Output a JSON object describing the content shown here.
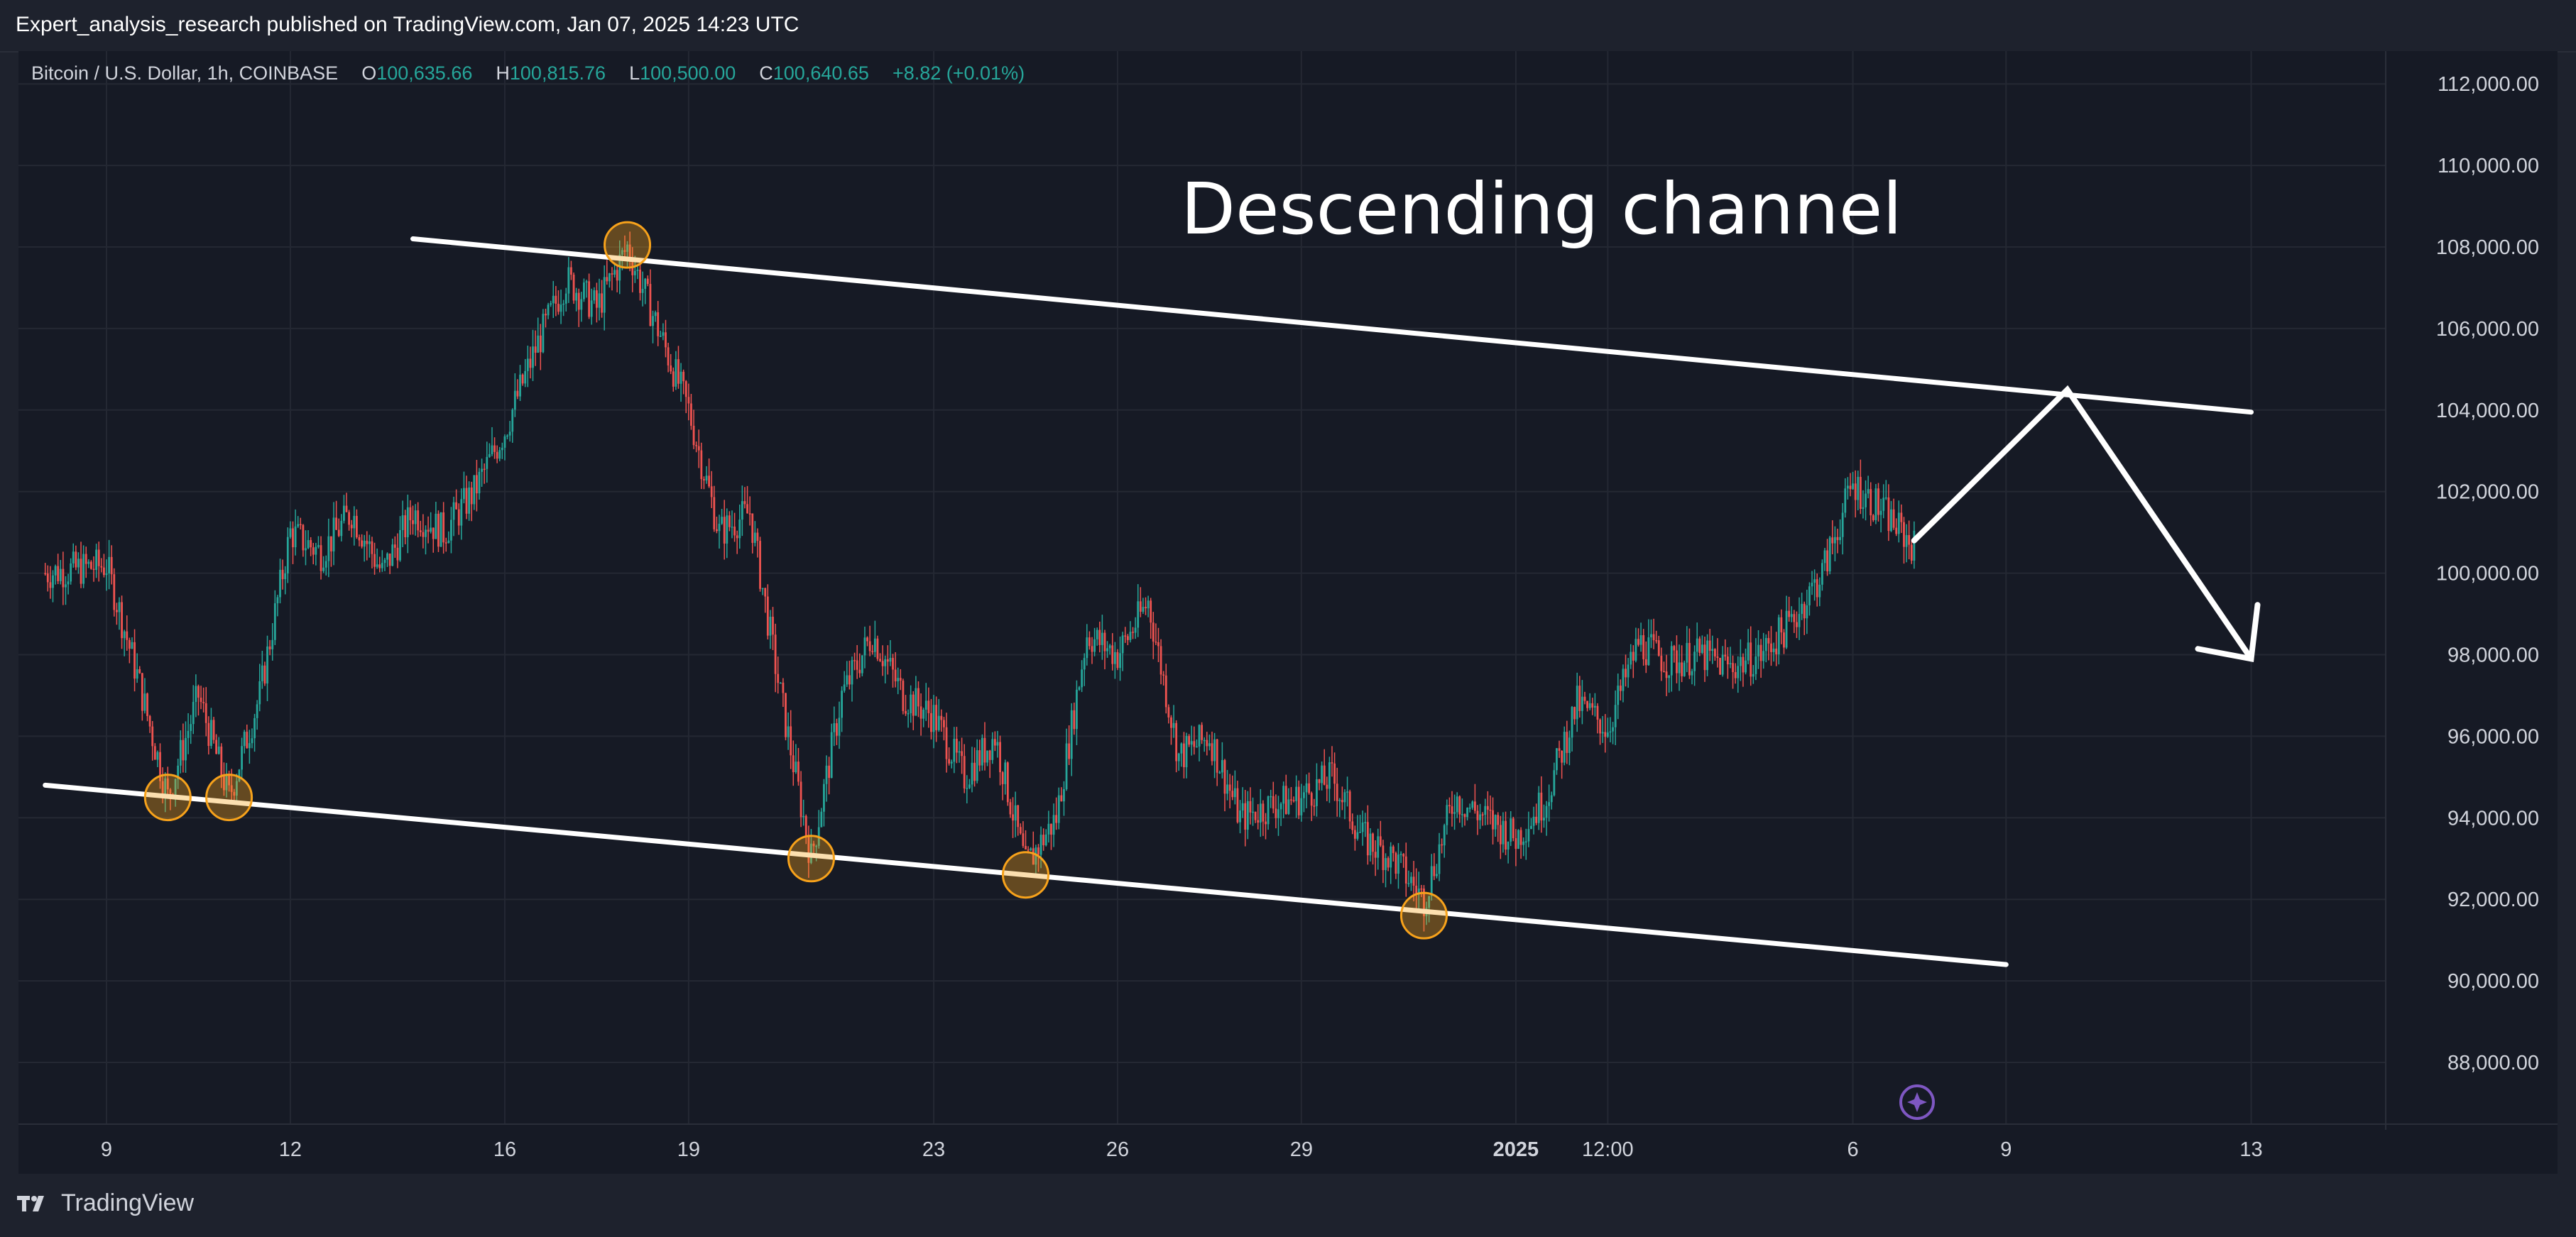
{
  "header": {
    "published": "Expert_analysis_research published on TradingView.com, Jan 07, 2025 14:23 UTC"
  },
  "legend": {
    "symbol": "Bitcoin / U.S. Dollar, 1h, COINBASE",
    "o_label": "O",
    "o_value": "100,635.66",
    "h_label": "H",
    "h_value": "100,815.76",
    "l_label": "L",
    "l_value": "100,500.00",
    "c_label": "C",
    "c_value": "100,640.65",
    "change": "+8.82 (+0.01%)"
  },
  "footer": {
    "brand": "TradingView"
  },
  "colors": {
    "up": "#26a69a",
    "down": "#ef5350",
    "annotation": "#ffffff",
    "marker": "#f7a21b",
    "background": "#161a25",
    "grid": "#242833"
  },
  "chart_data": {
    "type": "candlestick",
    "title": "Descending channel",
    "x": [
      "9",
      "12",
      "16",
      "19",
      "23",
      "26",
      "29",
      "2025",
      "12:00",
      "6",
      "9",
      "13"
    ],
    "y_ticks": [
      "112,000.00",
      "110,000.00",
      "108,000.00",
      "106,000.00",
      "104,000.00",
      "102,000.00",
      "100,000.00",
      "98,000.00",
      "96,000.00",
      "94,000.00",
      "92,000.00",
      "90,000.00",
      "88,000.00"
    ],
    "ylim": [
      86400,
      113200
    ],
    "grid": true,
    "price_path": [
      {
        "x": "Dec 8 00:00",
        "y": 100000
      },
      {
        "x": "Dec 9 00:00",
        "y": 100200
      },
      {
        "x": "Dec 9 12:00",
        "y": 97500
      },
      {
        "x": "Dec 10 00:00",
        "y": 94500
      },
      {
        "x": "Dec 10 12:00",
        "y": 97000
      },
      {
        "x": "Dec 11 00:00",
        "y": 94500
      },
      {
        "x": "Dec 11 12:00",
        "y": 97000
      },
      {
        "x": "Dec 12 00:00",
        "y": 101000
      },
      {
        "x": "Dec 12 12:00",
        "y": 100500
      },
      {
        "x": "Dec 13 00:00",
        "y": 101500
      },
      {
        "x": "Dec 13 12:00",
        "y": 100000
      },
      {
        "x": "Dec 14 00:00",
        "y": 101500
      },
      {
        "x": "Dec 14 12:00",
        "y": 101000
      },
      {
        "x": "Dec 15 00:00",
        "y": 102000
      },
      {
        "x": "Dec 15 12:00",
        "y": 103500
      },
      {
        "x": "Dec 16 00:00",
        "y": 105500
      },
      {
        "x": "Dec 16 12:00",
        "y": 107200
      },
      {
        "x": "Dec 17 00:00",
        "y": 106500
      },
      {
        "x": "Dec 17 12:00",
        "y": 108000
      },
      {
        "x": "Dec 18 00:00",
        "y": 106000
      },
      {
        "x": "Dec 18 12:00",
        "y": 104000
      },
      {
        "x": "Dec 19 00:00",
        "y": 101000
      },
      {
        "x": "Dec 19 12:00",
        "y": 101500
      },
      {
        "x": "Dec 20 00:00",
        "y": 97000
      },
      {
        "x": "Dec 20 12:00",
        "y": 93000
      },
      {
        "x": "Dec 21 00:00",
        "y": 97000
      },
      {
        "x": "Dec 21 12:00",
        "y": 98500
      },
      {
        "x": "Dec 22 00:00",
        "y": 97000
      },
      {
        "x": "Dec 22 12:00",
        "y": 96500
      },
      {
        "x": "Dec 23 00:00",
        "y": 95000
      },
      {
        "x": "Dec 23 12:00",
        "y": 96000
      },
      {
        "x": "Dec 24 00:00",
        "y": 92800
      },
      {
        "x": "Dec 24 12:00",
        "y": 94000
      },
      {
        "x": "Dec 25 00:00",
        "y": 98500
      },
      {
        "x": "Dec 25 12:00",
        "y": 98000
      },
      {
        "x": "Dec 26 00:00",
        "y": 99300
      },
      {
        "x": "Dec 26 12:00",
        "y": 95500
      },
      {
        "x": "Dec 27 00:00",
        "y": 96000
      },
      {
        "x": "Dec 27 12:00",
        "y": 94000
      },
      {
        "x": "Dec 28 00:00",
        "y": 94300
      },
      {
        "x": "Dec 28 12:00",
        "y": 94500
      },
      {
        "x": "Dec 29 00:00",
        "y": 95000
      },
      {
        "x": "Dec 29 12:00",
        "y": 93500
      },
      {
        "x": "Dec 30 00:00",
        "y": 93000
      },
      {
        "x": "Dec 30 12:00",
        "y": 92000
      },
      {
        "x": "Dec 31 00:00",
        "y": 94500
      },
      {
        "x": "Jan 1 00:00",
        "y": 93500
      },
      {
        "x": "Jan 1 12:00",
        "y": 94500
      },
      {
        "x": "Jan 2 00:00",
        "y": 96800
      },
      {
        "x": "Jan 2 12:00",
        "y": 96200
      },
      {
        "x": "Jan 3 00:00",
        "y": 98300
      },
      {
        "x": "Jan 3 12:00",
        "y": 97800
      },
      {
        "x": "Jan 4 00:00",
        "y": 98000
      },
      {
        "x": "Jan 4 12:00",
        "y": 97700
      },
      {
        "x": "Jan 5 00:00",
        "y": 98000
      },
      {
        "x": "Jan 5 12:00",
        "y": 98800
      },
      {
        "x": "Jan 6 00:00",
        "y": 100000
      },
      {
        "x": "Jan 6 12:00",
        "y": 102200
      },
      {
        "x": "Jan 7 00:00",
        "y": 101500
      },
      {
        "x": "Jan 7 12:00",
        "y": 100640
      }
    ],
    "channel": {
      "upper": [
        {
          "x": "Dec 14 00:00",
          "y": 108200
        },
        {
          "x": "Jan 13 00:00",
          "y": 103950
        }
      ],
      "lower": [
        {
          "x": "Dec 8 00:00",
          "y": 94800
        },
        {
          "x": "Jan 9 00:00",
          "y": 90400
        }
      ]
    },
    "touch_points": [
      {
        "x": "Dec 10 00:00",
        "y": 94500
      },
      {
        "x": "Dec 11 00:00",
        "y": 94500
      },
      {
        "x": "Dec 17 12:00",
        "y": 108050
      },
      {
        "x": "Dec 20 12:00",
        "y": 93000
      },
      {
        "x": "Dec 24 00:00",
        "y": 92600
      },
      {
        "x": "Dec 30 12:00",
        "y": 91600
      }
    ],
    "projection": [
      {
        "x": "Jan 7 12:00",
        "y": 100800
      },
      {
        "x": "Jan 10 00:00",
        "y": 104500
      },
      {
        "x": "Jan 13 00:00",
        "y": 97900
      }
    ]
  }
}
